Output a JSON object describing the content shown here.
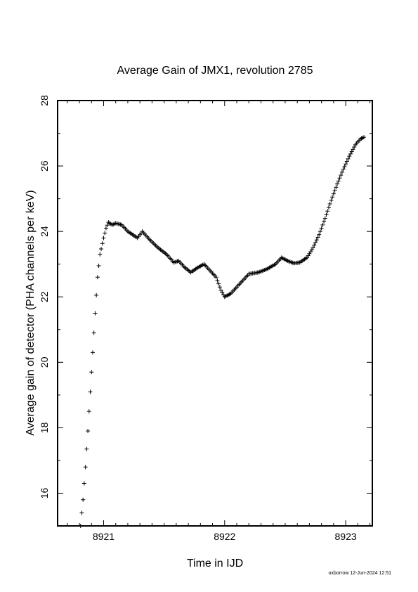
{
  "chart_data": {
    "type": "scatter",
    "title": "Average Gain of JMX1, revolution 2785",
    "xlabel": "Time in IJD",
    "ylabel": "Average gain of detector (PHA channels per keV)",
    "xlim": [
      8920.62,
      8923.22
    ],
    "ylim": [
      15,
      28
    ],
    "xticks": [
      8921,
      8922,
      8923
    ],
    "xtick_labels": [
      "8921",
      "8922",
      "8923"
    ],
    "yticks": [
      16,
      18,
      20,
      22,
      24,
      26,
      28
    ],
    "ytick_labels": [
      "16",
      "18",
      "20",
      "22",
      "24",
      "26",
      "28"
    ],
    "marker": "plus",
    "grid": false,
    "legend": "none",
    "series": [
      {
        "points": [
          [
            8920.81,
            15.0
          ],
          [
            8920.83,
            15.8
          ],
          [
            8920.85,
            16.8
          ],
          [
            8920.87,
            17.9
          ],
          [
            8920.89,
            19.1
          ],
          [
            8920.91,
            20.3
          ],
          [
            8920.93,
            21.5
          ],
          [
            8920.95,
            22.6
          ],
          [
            8920.97,
            23.3
          ],
          [
            8921.0,
            23.8
          ],
          [
            8921.02,
            24.1
          ],
          [
            8921.04,
            24.28
          ],
          [
            8921.07,
            24.2
          ],
          [
            8921.1,
            24.25
          ],
          [
            8921.15,
            24.2
          ],
          [
            8921.2,
            24.0
          ],
          [
            8921.28,
            23.8
          ],
          [
            8921.32,
            24.0
          ],
          [
            8921.38,
            23.75
          ],
          [
            8921.45,
            23.5
          ],
          [
            8921.52,
            23.3
          ],
          [
            8921.58,
            23.05
          ],
          [
            8921.62,
            23.1
          ],
          [
            8921.67,
            22.9
          ],
          [
            8921.72,
            22.75
          ],
          [
            8921.78,
            22.9
          ],
          [
            8921.83,
            23.0
          ],
          [
            8921.88,
            22.8
          ],
          [
            8921.93,
            22.6
          ],
          [
            8921.97,
            22.2
          ],
          [
            8922.0,
            22.0
          ],
          [
            8922.05,
            22.1
          ],
          [
            8922.1,
            22.3
          ],
          [
            8922.15,
            22.5
          ],
          [
            8922.2,
            22.7
          ],
          [
            8922.28,
            22.75
          ],
          [
            8922.35,
            22.85
          ],
          [
            8922.42,
            23.0
          ],
          [
            8922.47,
            23.2
          ],
          [
            8922.52,
            23.1
          ],
          [
            8922.57,
            23.03
          ],
          [
            8922.62,
            23.05
          ],
          [
            8922.68,
            23.2
          ],
          [
            8922.73,
            23.5
          ],
          [
            8922.78,
            23.9
          ],
          [
            8922.83,
            24.4
          ],
          [
            8922.88,
            24.95
          ],
          [
            8922.93,
            25.45
          ],
          [
            8922.98,
            25.9
          ],
          [
            8923.03,
            26.3
          ],
          [
            8923.08,
            26.65
          ],
          [
            8923.12,
            26.82
          ],
          [
            8923.15,
            26.88
          ]
        ]
      }
    ]
  },
  "footer": {
    "credit": "oxborrow 12-Jun-2024 12:51"
  }
}
